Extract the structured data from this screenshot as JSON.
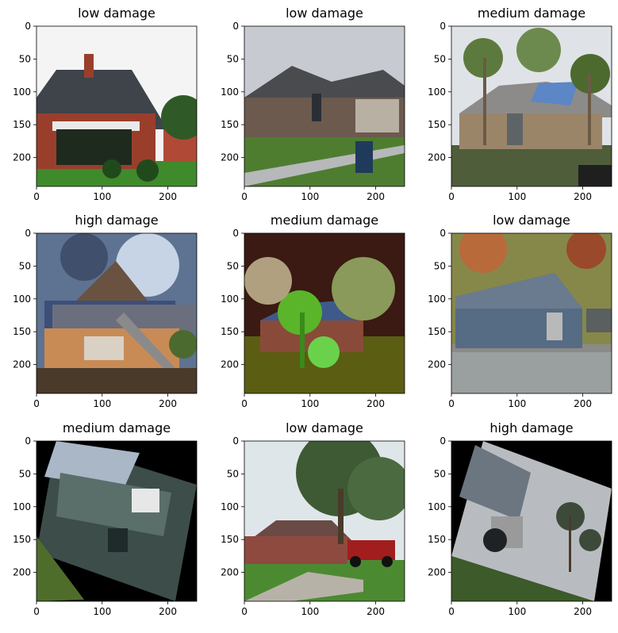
{
  "figure": {
    "panels": [
      {
        "title": "low damage",
        "scene": "red-brick-house-gray-roof"
      },
      {
        "title": "low damage",
        "scene": "brick-house-garage-trashcan"
      },
      {
        "title": "medium damage",
        "scene": "house-blue-tarp-palm-trees"
      },
      {
        "title": "high damage",
        "scene": "destroyed-two-story-house-stormy-sky"
      },
      {
        "title": "medium damage",
        "scene": "color-inverted-house-trees"
      },
      {
        "title": "low damage",
        "scene": "metal-shed-color-shifted"
      },
      {
        "title": "medium damage",
        "scene": "rotated-green-siding-house"
      },
      {
        "title": "low damage",
        "scene": "brick-house-red-truck-tree"
      },
      {
        "title": "high damage",
        "scene": "rotated-damaged-house-palms"
      }
    ],
    "x_ticks": [
      "0",
      "100",
      "200"
    ],
    "y_ticks": [
      "0",
      "50",
      "100",
      "150",
      "200"
    ],
    "axis_range": [
      0,
      244
    ],
    "colors": {
      "sky_gray": "#b9bec5",
      "brick": "#8e3b2c",
      "roof_gray": "#4a4d54",
      "grass": "#4f8a2e",
      "black_fill": "#000000"
    }
  }
}
